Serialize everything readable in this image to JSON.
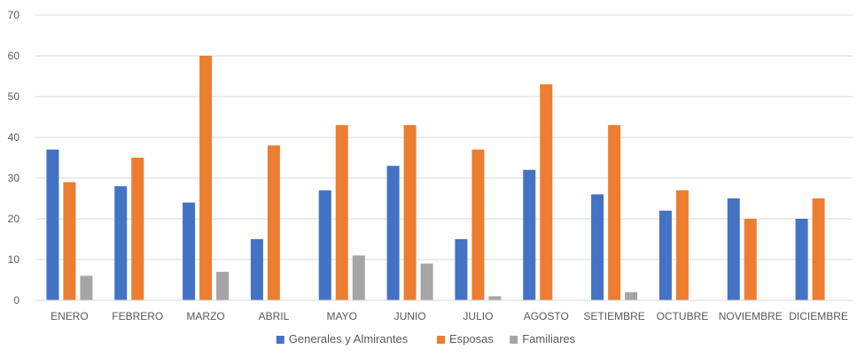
{
  "chart_data": {
    "type": "bar",
    "categories": [
      "ENERO",
      "FEBRERO",
      "MARZO",
      "ABRIL",
      "MAYO",
      "JUNIO",
      "JULIO",
      "AGOSTO",
      "SETIEMBRE",
      "OCTUBRE",
      "NOVIEMBRE",
      "DICIEMBRE"
    ],
    "series": [
      {
        "name": "Generales y Almirantes",
        "color": "#4472c4",
        "values": [
          37,
          28,
          24,
          15,
          27,
          33,
          15,
          32,
          26,
          22,
          25,
          20
        ]
      },
      {
        "name": "Esposas",
        "color": "#ed7d31",
        "values": [
          29,
          35,
          60,
          38,
          43,
          43,
          37,
          53,
          43,
          27,
          20,
          25
        ]
      },
      {
        "name": "Familiares",
        "color": "#a5a5a5",
        "values": [
          6,
          0,
          7,
          0,
          11,
          9,
          1,
          0,
          2,
          0,
          0,
          0
        ]
      }
    ],
    "yticks": [
      0,
      10,
      20,
      30,
      40,
      50,
      60,
      70
    ],
    "ylim": [
      0,
      70
    ],
    "grid": true,
    "legend_position": "bottom",
    "title": "",
    "xlabel": "",
    "ylabel": ""
  }
}
